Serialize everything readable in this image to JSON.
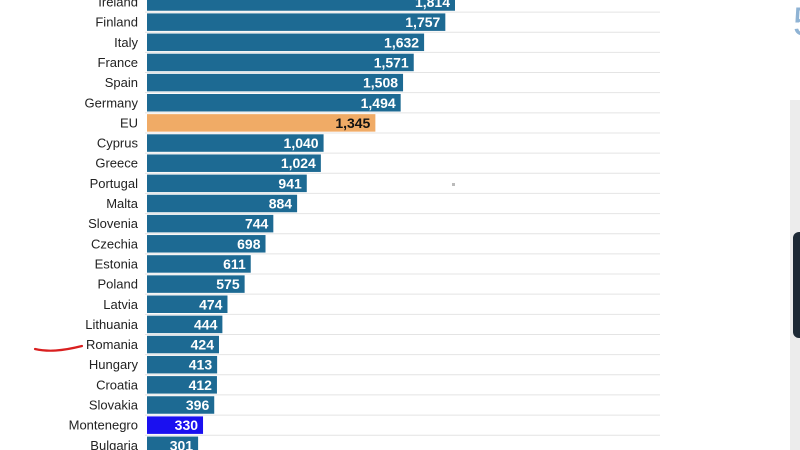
{
  "chart_data": {
    "type": "bar",
    "orientation": "horizontal",
    "categories": [
      "Ireland",
      "Finland",
      "Italy",
      "France",
      "Spain",
      "Germany",
      "EU",
      "Cyprus",
      "Greece",
      "Portugal",
      "Malta",
      "Slovenia",
      "Czechia",
      "Estonia",
      "Poland",
      "Latvia",
      "Lithuania",
      "Romania",
      "Hungary",
      "Croatia",
      "Slovakia",
      "Montenegro",
      "Bulgaria"
    ],
    "values": [
      1814,
      1757,
      1632,
      1571,
      1508,
      1494,
      1345,
      1040,
      1024,
      941,
      884,
      744,
      698,
      611,
      575,
      474,
      444,
      424,
      413,
      412,
      396,
      330,
      301
    ],
    "labels": [
      "1,814",
      "1,757",
      "1,632",
      "1,571",
      "1,508",
      "1,494",
      "1,345",
      "1,040",
      "1,024",
      "941",
      "884",
      "744",
      "698",
      "611",
      "575",
      "474",
      "444",
      "424",
      "413",
      "412",
      "396",
      "330",
      "301"
    ],
    "highlight": {
      "EU": "#f0ab66",
      "Montenegro": "#1a10f0"
    },
    "colors": {
      "default": "#1d6a93",
      "grid": "#e4e4e4",
      "label": "#ffffff",
      "label_on_highlight": "#111111"
    },
    "annotation": "hand-drawn red underline next to Romania",
    "grid": true,
    "legend": "none",
    "title": "",
    "xlabel": "",
    "ylabel": ""
  },
  "side_panel": {
    "digit": "5"
  }
}
